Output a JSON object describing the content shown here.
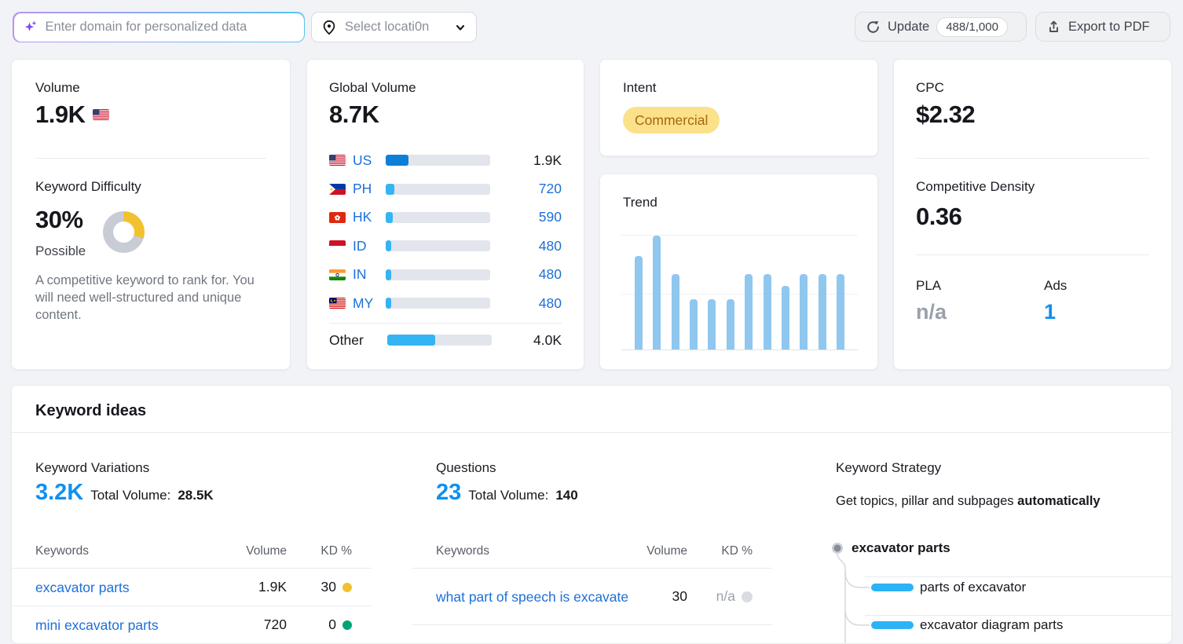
{
  "topbar": {
    "domain_input": {
      "placeholder": "Enter domain for personalized data"
    },
    "location_select": {
      "label": "Select locati0n"
    },
    "update_button": {
      "label": "Update",
      "count": "488/1,000"
    },
    "export_button": {
      "label": "Export to PDF"
    }
  },
  "volume_card": {
    "title": "Volume",
    "value": "1.9K",
    "flag": "us-flag",
    "kd": {
      "title": "Keyword Difficulty",
      "percent_text": "30%",
      "value": 30,
      "label": "Possible",
      "description": "A competitive keyword to rank for. You will need well-structured and unique content.",
      "ring_color": "#f2c12e",
      "track_color": "#c7ccd5"
    }
  },
  "global_volume_card": {
    "title": "Global Volume",
    "value": "8.7K",
    "chart_data": {
      "type": "bar",
      "categories": [
        "US",
        "PH",
        "HK",
        "ID",
        "IN",
        "MY",
        "Other"
      ],
      "values": [
        1900,
        720,
        590,
        480,
        480,
        480,
        4000
      ],
      "title": "Global Volume",
      "total": 8700
    },
    "rows": [
      {
        "code": "US",
        "value": "1.9K",
        "fill": "21.8%",
        "bar_color": "#0b80d6"
      },
      {
        "code": "PH",
        "value": "720",
        "fill": "8.3%",
        "bar_color": "#35b4f3"
      },
      {
        "code": "HK",
        "value": "590",
        "fill": "6.8%",
        "bar_color": "#35b4f3"
      },
      {
        "code": "ID",
        "value": "480",
        "fill": "5.5%",
        "bar_color": "#35b4f3"
      },
      {
        "code": "IN",
        "value": "480",
        "fill": "5.5%",
        "bar_color": "#35b4f3"
      },
      {
        "code": "MY",
        "value": "480",
        "fill": "5.5%",
        "bar_color": "#35b4f3"
      }
    ],
    "other": {
      "label": "Other",
      "value": "4.0K",
      "fill": "46%",
      "bar_color": "#35b4f3"
    }
  },
  "intent_card": {
    "title": "Intent",
    "badge": "Commercial",
    "badge_bg": "#fce18b",
    "badge_text_color": "#a4670e"
  },
  "trend_card": {
    "title": "Trend",
    "chart_data": {
      "type": "bar",
      "x": [
        "1",
        "2",
        "3",
        "4",
        "5",
        "6",
        "7",
        "8",
        "9",
        "10",
        "11",
        "12"
      ],
      "values": [
        0.82,
        1.0,
        0.66,
        0.44,
        0.44,
        0.44,
        0.66,
        0.66,
        0.56,
        0.66,
        0.66,
        0.66
      ],
      "title": "Trend",
      "ylim": [
        0,
        1
      ],
      "bar_color": "#8fc7ef",
      "grid": "two faint horizontal gridlines, no axis labels"
    }
  },
  "cpc_card": {
    "title": "CPC",
    "value": "$2.32",
    "cd_title": "Competitive Density",
    "cd_value": "0.36",
    "pla_label": "PLA",
    "pla_value": "n/a",
    "ads_label": "Ads",
    "ads_value": "1",
    "ads_color": "#1090f0"
  },
  "keyword_ideas": {
    "title": "Keyword ideas",
    "variations": {
      "title": "Keyword Variations",
      "count": "3.2K",
      "total_label": "Total Volume:",
      "total_value": "28.5K",
      "headers": {
        "keywords": "Keywords",
        "volume": "Volume",
        "kd": "KD %"
      },
      "rows": [
        {
          "keyword": "excavator parts",
          "volume": "1.9K",
          "kd": "30",
          "kd_color": "#f2c12e"
        },
        {
          "keyword": "mini excavator parts",
          "volume": "720",
          "kd": "0",
          "kd_color": "#00a377"
        }
      ]
    },
    "questions": {
      "title": "Questions",
      "count": "23",
      "total_label": "Total Volume:",
      "total_value": "140",
      "headers": {
        "keywords": "Keywords",
        "volume": "Volume",
        "kd": "KD %"
      },
      "rows": [
        {
          "keyword": "what part of speech is excavate",
          "volume": "30",
          "kd": "n/a",
          "kd_color": "#d9dce1"
        }
      ]
    },
    "strategy": {
      "title": "Keyword Strategy",
      "subtitle_prefix": "Get topics, pillar and subpages ",
      "subtitle_bold": "automatically",
      "root": "excavator parts",
      "children": [
        "parts of excavator",
        "excavator diagram parts"
      ]
    }
  }
}
